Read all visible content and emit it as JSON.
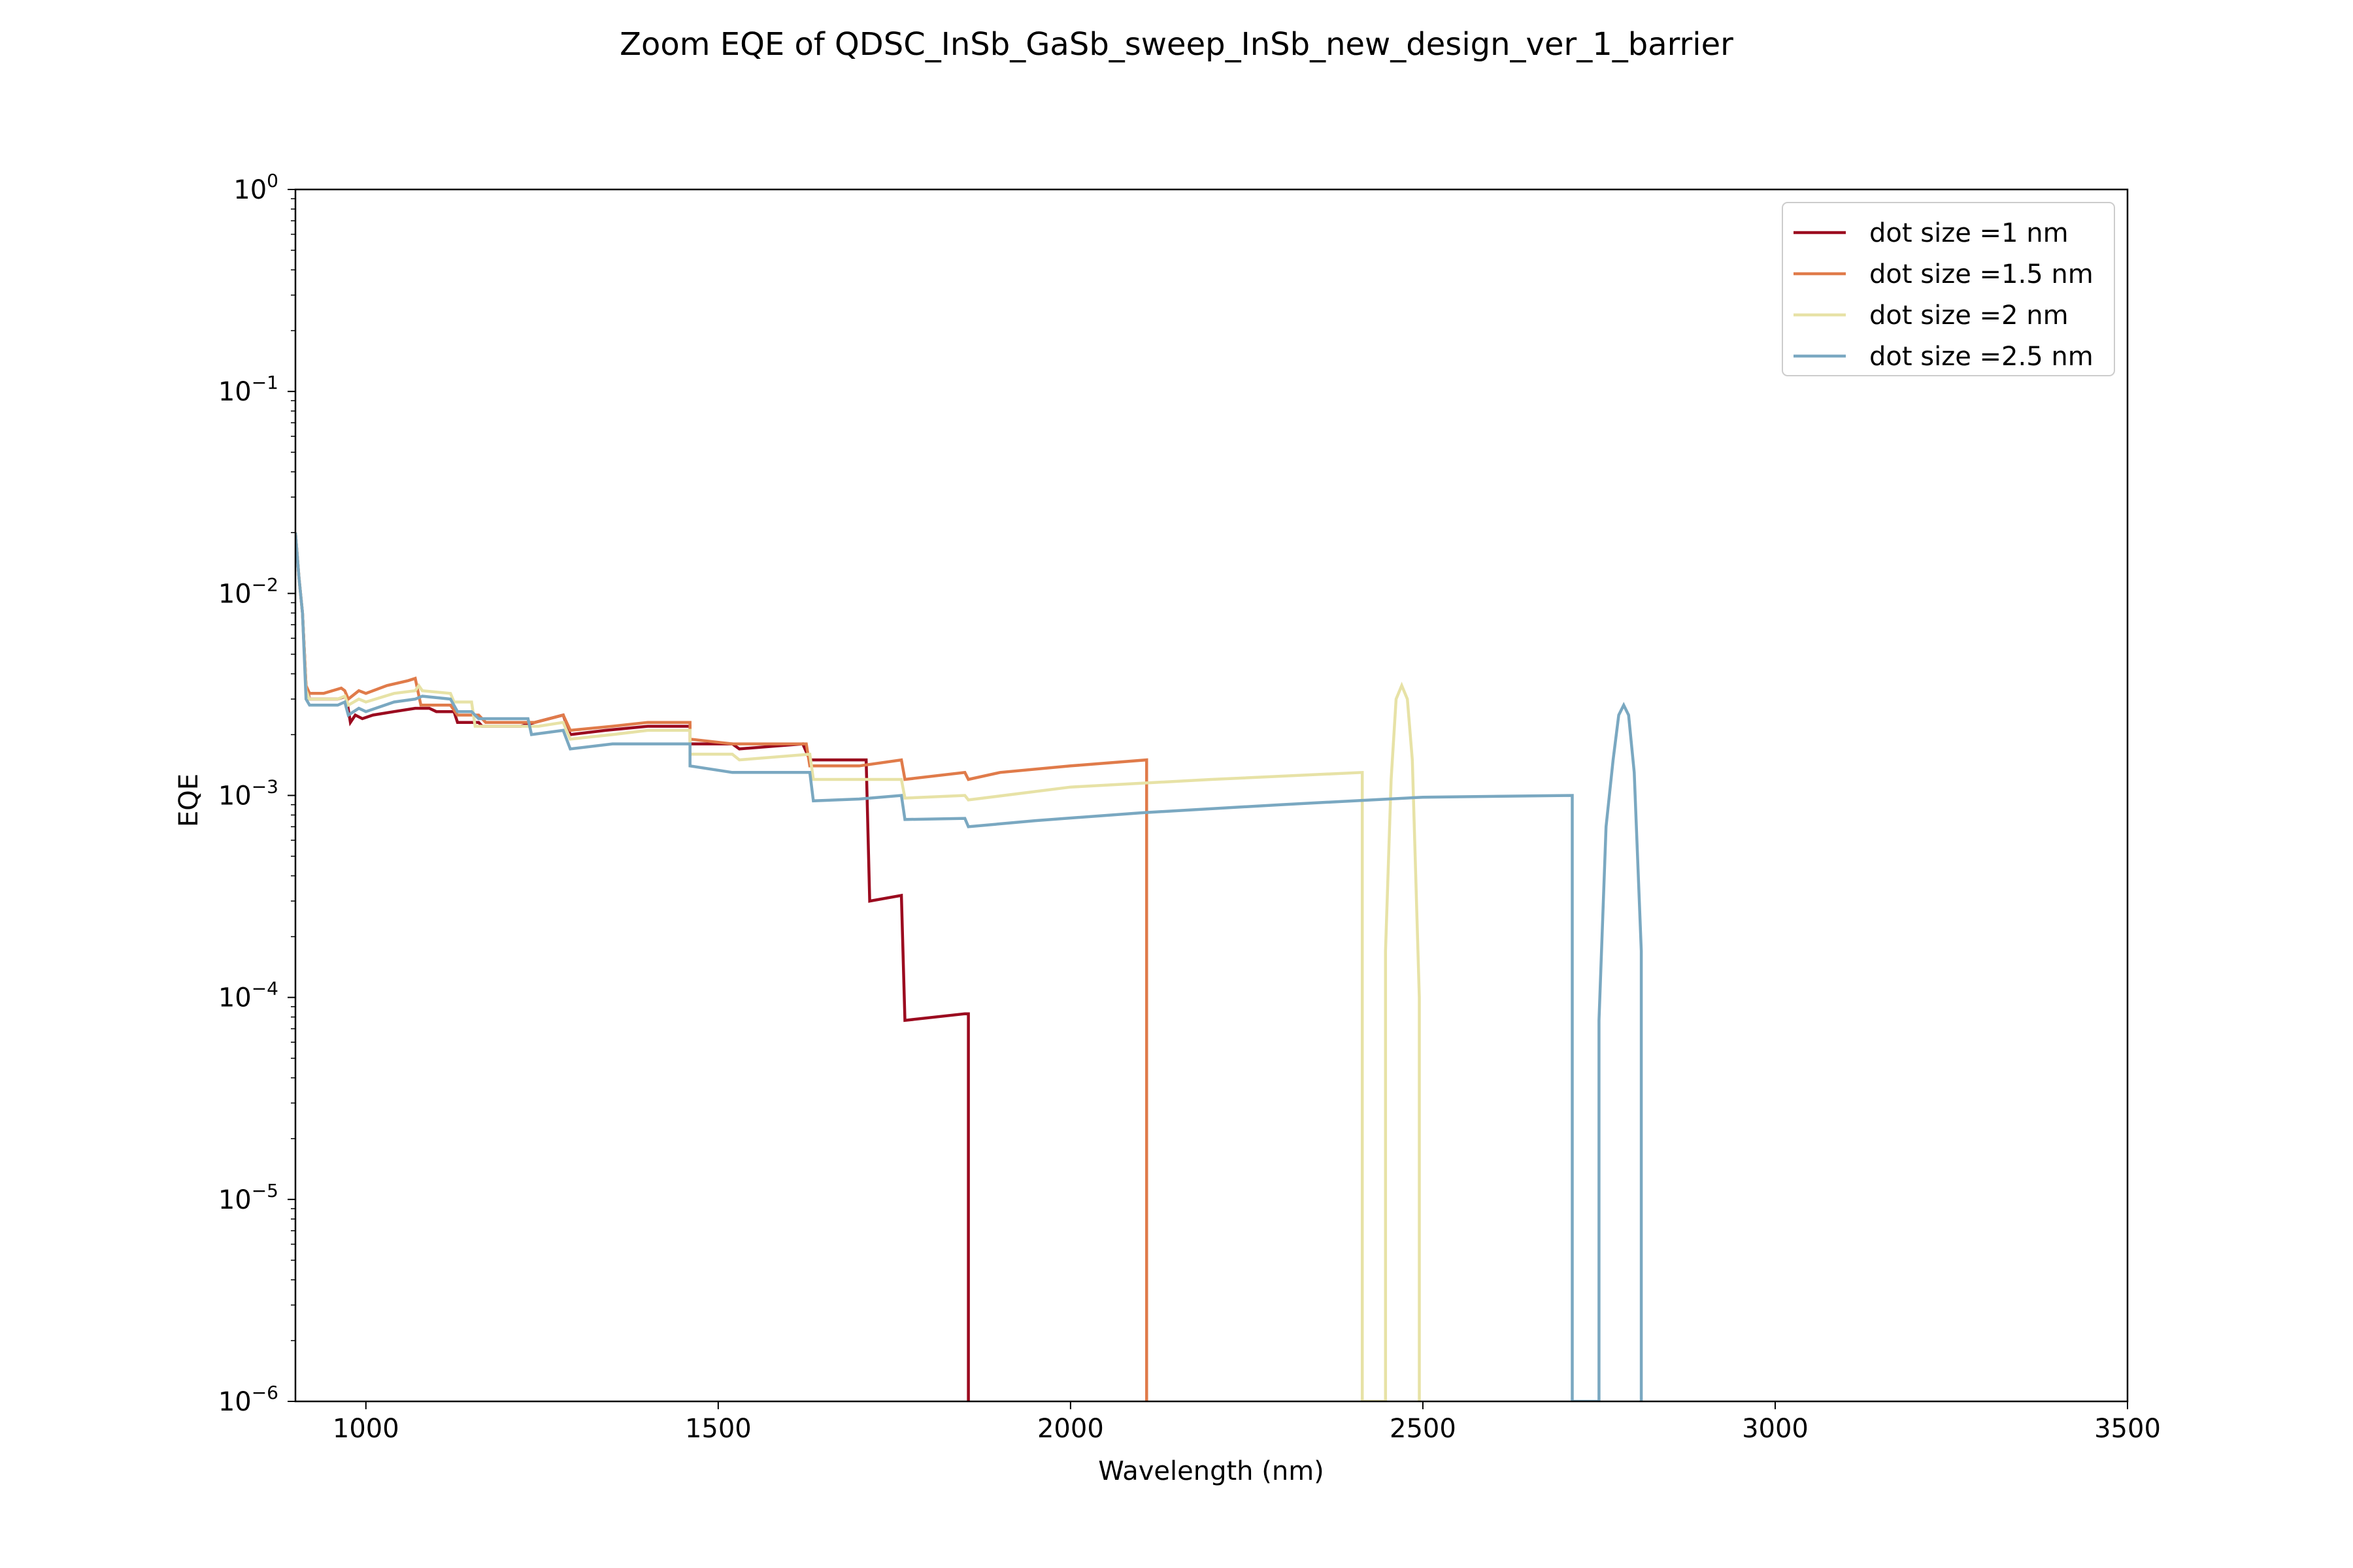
{
  "chart_data": {
    "type": "line",
    "title": "Zoom EQE of QDSC_InSb_GaSb_sweep_InSb_new_design_ver_1_barrier",
    "xlabel": "Wavelength (nm)",
    "ylabel": "EQE",
    "xlim": [
      900,
      3500
    ],
    "ylim": [
      1e-06,
      1
    ],
    "yscale": "log",
    "grid": false,
    "legend_position": "top-right",
    "x_ticks": [
      {
        "value": 1000,
        "label": "1000"
      },
      {
        "value": 1500,
        "label": "1500"
      },
      {
        "value": 2000,
        "label": "2000"
      },
      {
        "value": 2500,
        "label": "2500"
      },
      {
        "value": 3000,
        "label": "3000"
      },
      {
        "value": 3500,
        "label": "3500"
      }
    ],
    "y_ticks": [
      {
        "value": 1,
        "base": "10",
        "exp": "0"
      },
      {
        "value": 0.1,
        "base": "10",
        "exp": "−1"
      },
      {
        "value": 0.01,
        "base": "10",
        "exp": "−2"
      },
      {
        "value": 0.001,
        "base": "10",
        "exp": "−3"
      },
      {
        "value": 0.0001,
        "base": "10",
        "exp": "−4"
      },
      {
        "value": 1e-05,
        "base": "10",
        "exp": "−5"
      },
      {
        "value": 1e-06,
        "base": "10",
        "exp": "−6"
      }
    ],
    "series": [
      {
        "name": "dot size =1 nm",
        "color": "#9b0a1f",
        "points": [
          [
            900,
            0.02
          ],
          [
            905,
            0.012
          ],
          [
            910,
            0.008
          ],
          [
            915,
            0.0035
          ],
          [
            920,
            0.003
          ],
          [
            940,
            0.003
          ],
          [
            960,
            0.003
          ],
          [
            972,
            0.0031
          ],
          [
            978,
            0.0023
          ],
          [
            985,
            0.0025
          ],
          [
            995,
            0.0024
          ],
          [
            1010,
            0.0025
          ],
          [
            1040,
            0.0026
          ],
          [
            1070,
            0.0027
          ],
          [
            1090,
            0.0027
          ],
          [
            1100,
            0.0026
          ],
          [
            1125,
            0.0026
          ],
          [
            1130,
            0.0023
          ],
          [
            1160,
            0.0023
          ],
          [
            1165,
            0.0022
          ],
          [
            1220,
            0.0022
          ],
          [
            1240,
            0.0023
          ],
          [
            1280,
            0.0025
          ],
          [
            1290,
            0.002
          ],
          [
            1340,
            0.0021
          ],
          [
            1400,
            0.0022
          ],
          [
            1440,
            0.0022
          ],
          [
            1460,
            0.0022
          ],
          [
            1460,
            0.0018
          ],
          [
            1520,
            0.0018
          ],
          [
            1530,
            0.0017
          ],
          [
            1620,
            0.0018
          ],
          [
            1630,
            0.0015
          ],
          [
            1700,
            0.0015
          ],
          [
            1710,
            0.0015
          ],
          [
            1715,
            0.0003
          ],
          [
            1760,
            0.00032
          ],
          [
            1765,
            7.7e-05
          ],
          [
            1850,
            8.3e-05
          ],
          [
            1855,
            8.3e-05
          ],
          [
            1855,
            1e-06
          ]
        ]
      },
      {
        "name": "dot size =1.5 nm",
        "color": "#e07b4a",
        "points": [
          [
            900,
            0.02
          ],
          [
            905,
            0.012
          ],
          [
            910,
            0.008
          ],
          [
            915,
            0.0035
          ],
          [
            920,
            0.0032
          ],
          [
            940,
            0.0032
          ],
          [
            965,
            0.0034
          ],
          [
            970,
            0.0033
          ],
          [
            975,
            0.003
          ],
          [
            990,
            0.0033
          ],
          [
            1000,
            0.0032
          ],
          [
            1030,
            0.0035
          ],
          [
            1060,
            0.0037
          ],
          [
            1070,
            0.0038
          ],
          [
            1078,
            0.0028
          ],
          [
            1120,
            0.0028
          ],
          [
            1130,
            0.0025
          ],
          [
            1160,
            0.0025
          ],
          [
            1170,
            0.0023
          ],
          [
            1230,
            0.0023
          ],
          [
            1240,
            0.0023
          ],
          [
            1280,
            0.0025
          ],
          [
            1290,
            0.0021
          ],
          [
            1350,
            0.0022
          ],
          [
            1400,
            0.0023
          ],
          [
            1460,
            0.0023
          ],
          [
            1460,
            0.0019
          ],
          [
            1520,
            0.0018
          ],
          [
            1625,
            0.0018
          ],
          [
            1630,
            0.0014
          ],
          [
            1700,
            0.0014
          ],
          [
            1760,
            0.0015
          ],
          [
            1765,
            0.0012
          ],
          [
            1850,
            0.0013
          ],
          [
            1855,
            0.0012
          ],
          [
            1900,
            0.0013
          ],
          [
            2000,
            0.0014
          ],
          [
            2108,
            0.0015
          ],
          [
            2108,
            1e-06
          ]
        ]
      },
      {
        "name": "dot size =2 nm",
        "color": "#e7e2a6",
        "points": [
          [
            900,
            0.02
          ],
          [
            905,
            0.012
          ],
          [
            910,
            0.008
          ],
          [
            915,
            0.0033
          ],
          [
            920,
            0.003
          ],
          [
            960,
            0.003
          ],
          [
            970,
            0.0031
          ],
          [
            975,
            0.0028
          ],
          [
            990,
            0.003
          ],
          [
            1000,
            0.0029
          ],
          [
            1040,
            0.0032
          ],
          [
            1070,
            0.0033
          ],
          [
            1075,
            0.0035
          ],
          [
            1080,
            0.0033
          ],
          [
            1120,
            0.0032
          ],
          [
            1125,
            0.0029
          ],
          [
            1150,
            0.0029
          ],
          [
            1155,
            0.0022
          ],
          [
            1200,
            0.0022
          ],
          [
            1240,
            0.0022
          ],
          [
            1245,
            0.0022
          ],
          [
            1280,
            0.0023
          ],
          [
            1290,
            0.0019
          ],
          [
            1350,
            0.002
          ],
          [
            1400,
            0.0021
          ],
          [
            1460,
            0.0021
          ],
          [
            1460,
            0.0016
          ],
          [
            1520,
            0.0016
          ],
          [
            1530,
            0.0015
          ],
          [
            1630,
            0.0016
          ],
          [
            1635,
            0.0012
          ],
          [
            1700,
            0.0012
          ],
          [
            1760,
            0.0012
          ],
          [
            1765,
            0.00097
          ],
          [
            1850,
            0.001
          ],
          [
            1855,
            0.00095
          ],
          [
            2000,
            0.0011
          ],
          [
            2200,
            0.0012
          ],
          [
            2414,
            0.0013
          ],
          [
            2414,
            1e-06
          ],
          [
            2447,
            1e-06
          ],
          [
            2447,
            0.00017
          ],
          [
            2455,
            0.0012
          ],
          [
            2462,
            0.003
          ],
          [
            2470,
            0.0035
          ],
          [
            2478,
            0.003
          ],
          [
            2485,
            0.0015
          ],
          [
            2495,
            0.0001
          ],
          [
            2495,
            1e-06
          ]
        ]
      },
      {
        "name": "dot size =2.5 nm",
        "color": "#7aa8c1",
        "points": [
          [
            900,
            0.02
          ],
          [
            905,
            0.012
          ],
          [
            910,
            0.008
          ],
          [
            915,
            0.003
          ],
          [
            920,
            0.0028
          ],
          [
            960,
            0.0028
          ],
          [
            970,
            0.0029
          ],
          [
            975,
            0.0025
          ],
          [
            990,
            0.0027
          ],
          [
            1000,
            0.0026
          ],
          [
            1040,
            0.0029
          ],
          [
            1070,
            0.003
          ],
          [
            1080,
            0.0031
          ],
          [
            1120,
            0.003
          ],
          [
            1130,
            0.0026
          ],
          [
            1150,
            0.0026
          ],
          [
            1160,
            0.0024
          ],
          [
            1230,
            0.0024
          ],
          [
            1235,
            0.002
          ],
          [
            1280,
            0.0021
          ],
          [
            1290,
            0.0017
          ],
          [
            1350,
            0.0018
          ],
          [
            1400,
            0.0018
          ],
          [
            1460,
            0.0018
          ],
          [
            1460,
            0.0014
          ],
          [
            1520,
            0.0013
          ],
          [
            1630,
            0.0013
          ],
          [
            1635,
            0.00094
          ],
          [
            1700,
            0.00096
          ],
          [
            1760,
            0.001
          ],
          [
            1765,
            0.00076
          ],
          [
            1850,
            0.00077
          ],
          [
            1855,
            0.0007
          ],
          [
            1950,
            0.00075
          ],
          [
            2100,
            0.00082
          ],
          [
            2300,
            0.0009
          ],
          [
            2500,
            0.00098
          ],
          [
            2712,
            0.001
          ],
          [
            2712,
            1e-06
          ],
          [
            2750,
            1e-06
          ],
          [
            2750,
            7.7e-05
          ],
          [
            2760,
            0.0007
          ],
          [
            2770,
            0.0015
          ],
          [
            2778,
            0.0025
          ],
          [
            2785,
            0.0028
          ],
          [
            2792,
            0.0025
          ],
          [
            2800,
            0.0013
          ],
          [
            2810,
            0.00017
          ],
          [
            2810,
            1e-06
          ]
        ]
      }
    ]
  }
}
